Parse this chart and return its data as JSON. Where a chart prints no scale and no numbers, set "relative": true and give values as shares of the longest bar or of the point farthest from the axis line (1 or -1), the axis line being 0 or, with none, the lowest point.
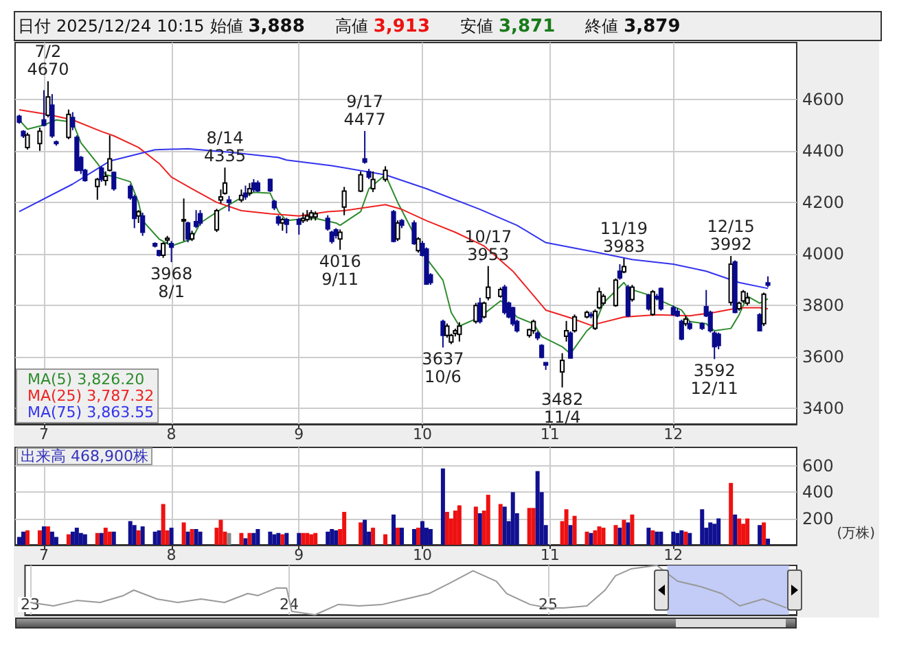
{
  "chart_data": [
    {
      "type": "candlestick",
      "title": "日付 2025/12/24 10:15 始値 3,888 高値 3,913 安値 3,871 終値 3,879",
      "x": [
        "2025-06-25",
        "2025-06-26",
        "2025-06-27",
        "2025-06-30",
        "2025-07-01",
        "2025-07-02",
        "2025-07-03",
        "2025-07-04",
        "2025-07-07",
        "2025-07-08",
        "2025-07-09",
        "2025-07-10",
        "2025-07-11",
        "2025-07-14",
        "2025-07-15",
        "2025-07-16",
        "2025-07-17",
        "2025-07-18",
        "2025-07-22",
        "2025-07-23",
        "2025-07-24",
        "2025-07-25",
        "2025-07-28",
        "2025-07-29",
        "2025-07-30",
        "2025-07-31",
        "2025-08-01",
        "2025-08-04",
        "2025-08-05",
        "2025-08-06",
        "2025-08-07",
        "2025-08-08",
        "2025-08-12",
        "2025-08-13",
        "2025-08-14",
        "2025-08-15",
        "2025-08-18",
        "2025-08-19",
        "2025-08-20",
        "2025-08-21",
        "2025-08-22",
        "2025-08-25",
        "2025-08-26",
        "2025-08-27",
        "2025-08-28",
        "2025-08-29",
        "2025-09-01",
        "2025-09-02",
        "2025-09-03",
        "2025-09-04",
        "2025-09-05",
        "2025-09-08",
        "2025-09-09",
        "2025-09-10",
        "2025-09-11",
        "2025-09-12",
        "2025-09-16",
        "2025-09-17",
        "2025-09-18",
        "2025-09-19",
        "2025-09-22",
        "2025-09-24",
        "2025-09-25",
        "2025-09-26",
        "2025-09-29",
        "2025-09-30",
        "2025-10-01",
        "2025-10-02",
        "2025-10-03",
        "2025-10-06",
        "2025-10-07",
        "2025-10-08",
        "2025-10-09",
        "2025-10-10",
        "2025-10-14",
        "2025-10-15",
        "2025-10-16",
        "2025-10-17",
        "2025-10-20",
        "2025-10-21",
        "2025-10-22",
        "2025-10-23",
        "2025-10-24",
        "2025-10-27",
        "2025-10-28",
        "2025-10-29",
        "2025-10-30",
        "2025-10-31",
        "2025-11-04",
        "2025-11-05",
        "2025-11-06",
        "2025-11-07",
        "2025-11-10",
        "2025-11-11",
        "2025-11-12",
        "2025-11-13",
        "2025-11-14",
        "2025-11-17",
        "2025-11-18",
        "2025-11-19",
        "2025-11-20",
        "2025-11-21",
        "2025-11-25",
        "2025-11-26",
        "2025-11-27",
        "2025-11-28",
        "2025-12-01",
        "2025-12-02",
        "2025-12-03",
        "2025-12-04",
        "2025-12-05",
        "2025-12-08",
        "2025-12-09",
        "2025-12-10",
        "2025-12-11",
        "2025-12-12",
        "2025-12-15",
        "2025-12-16",
        "2025-12-17",
        "2025-12-18",
        "2025-12-19",
        "2025-12-22",
        "2025-12-23",
        "2025-12-24"
      ],
      "ohlc": [
        [
          4534,
          4540,
          4505,
          4511
        ],
        [
          4475,
          4480,
          4450,
          4458
        ],
        [
          4413,
          4470,
          4405,
          4461
        ],
        [
          4428,
          4490,
          4400,
          4476
        ],
        [
          4520,
          4635,
          4495,
          4499
        ],
        [
          4538,
          4670,
          4530,
          4609
        ],
        [
          4577,
          4620,
          4450,
          4458
        ],
        [
          4435,
          4440,
          4420,
          4428
        ],
        [
          4452,
          4560,
          4445,
          4541
        ],
        [
          4529,
          4550,
          4480,
          4493
        ],
        [
          4452,
          4460,
          4320,
          4324
        ],
        [
          4374,
          4380,
          4310,
          4324
        ],
        [
          4324,
          4330,
          4280,
          4285
        ],
        [
          4262,
          4295,
          4210,
          4289
        ],
        [
          4333,
          4340,
          4280,
          4289
        ],
        [
          4285,
          4320,
          4265,
          4301
        ],
        [
          4324,
          4460,
          4320,
          4369
        ],
        [
          4316,
          4320,
          4245,
          4253
        ],
        [
          4262,
          4270,
          4210,
          4218
        ],
        [
          4221,
          4230,
          4100,
          4138
        ],
        [
          4147,
          4170,
          4120,
          4164
        ],
        [
          4147,
          4160,
          4070,
          4084
        ],
        [
          4040,
          4045,
          4025,
          4031
        ],
        [
          4013,
          4015,
          3990,
          3995
        ],
        [
          3995,
          4045,
          3985,
          4040
        ],
        [
          4054,
          4070,
          4040,
          4061
        ],
        [
          4040,
          4050,
          3968,
          4026
        ],
        [
          4130,
          4215,
          4050,
          4133
        ],
        [
          4120,
          4125,
          4045,
          4058
        ],
        [
          4058,
          4090,
          4050,
          4079
        ],
        [
          4125,
          4170,
          4100,
          4107
        ],
        [
          4156,
          4170,
          4110,
          4120
        ],
        [
          4093,
          4175,
          4085,
          4168
        ],
        [
          4209,
          4250,
          4195,
          4221
        ],
        [
          4235,
          4335,
          4230,
          4275
        ],
        [
          4209,
          4225,
          4165,
          4200
        ],
        [
          4209,
          4250,
          4200,
          4227
        ],
        [
          4236,
          4265,
          4210,
          4222
        ],
        [
          4236,
          4275,
          4225,
          4253
        ],
        [
          4275,
          4290,
          4240,
          4250
        ],
        [
          4275,
          4285,
          4240,
          4245
        ],
        [
          4289,
          4292,
          4240,
          4245
        ],
        [
          4204,
          4210,
          4170,
          4179
        ],
        [
          4143,
          4150,
          4110,
          4120
        ],
        [
          4120,
          4140,
          4090,
          4133
        ],
        [
          4133,
          4140,
          4080,
          4115
        ],
        [
          4133,
          4140,
          4075,
          4115
        ],
        [
          4129,
          4160,
          4120,
          4138
        ],
        [
          4133,
          4170,
          4125,
          4147
        ],
        [
          4143,
          4170,
          4130,
          4159
        ],
        [
          4143,
          4165,
          4130,
          4156
        ],
        [
          4138,
          4150,
          4090,
          4097
        ],
        [
          4084,
          4090,
          4040,
          4049
        ],
        [
          4093,
          4100,
          4060,
          4072
        ],
        [
          4058,
          4095,
          4016,
          4084
        ],
        [
          4182,
          4260,
          4150,
          4244
        ],
        [
          4244,
          4320,
          4240,
          4307
        ],
        [
          4369,
          4477,
          4350,
          4356
        ],
        [
          4319,
          4330,
          4290,
          4298
        ],
        [
          4253,
          4320,
          4240,
          4289
        ],
        [
          4289,
          4340,
          4280,
          4324
        ],
        [
          4164,
          4170,
          4045,
          4049
        ],
        [
          4058,
          4130,
          4050,
          4120
        ],
        [
          4129,
          4135,
          4100,
          4111
        ],
        [
          4120,
          4130,
          4035,
          4040
        ],
        [
          4013,
          4065,
          4005,
          4058
        ],
        [
          4040,
          4050,
          3990,
          3995
        ],
        [
          4019,
          4025,
          3880,
          3883
        ],
        [
          3919,
          3925,
          3880,
          3889
        ],
        [
          3738,
          3745,
          3637,
          3684
        ],
        [
          3684,
          3730,
          3675,
          3720
        ],
        [
          3658,
          3690,
          3650,
          3684
        ],
        [
          3692,
          3710,
          3680,
          3702
        ],
        [
          3688,
          3735,
          3660,
          3720
        ],
        [
          3738,
          3810,
          3730,
          3800
        ],
        [
          3809,
          3830,
          3730,
          3738
        ],
        [
          3756,
          3815,
          3750,
          3809
        ],
        [
          3830,
          3953,
          3820,
          3871
        ],
        [
          3836,
          3870,
          3830,
          3862
        ],
        [
          3871,
          3880,
          3765,
          3773
        ],
        [
          3809,
          3815,
          3750,
          3756
        ],
        [
          3791,
          3795,
          3720,
          3729
        ],
        [
          3738,
          3745,
          3695,
          3702
        ],
        [
          3684,
          3710,
          3675,
          3706
        ],
        [
          3702,
          3745,
          3690,
          3738
        ],
        [
          3693,
          3700,
          3665,
          3675
        ],
        [
          3645,
          3650,
          3595,
          3599
        ],
        [
          3578,
          3580,
          3550,
          3569
        ],
        [
          3542,
          3615,
          3482,
          3587
        ],
        [
          3681,
          3740,
          3660,
          3702
        ],
        [
          3693,
          3700,
          3595,
          3596
        ],
        [
          3702,
          3765,
          3695,
          3756
        ],
        [
          3756,
          3780,
          3750,
          3773
        ],
        [
          3765,
          3775,
          3750,
          3760
        ],
        [
          3711,
          3785,
          3705,
          3777
        ],
        [
          3791,
          3870,
          3785,
          3853
        ],
        [
          3809,
          3845,
          3800,
          3836
        ],
        [
          3800,
          3905,
          3795,
          3898
        ],
        [
          3933,
          3960,
          3900,
          3907
        ],
        [
          3930,
          3983,
          3925,
          3951
        ],
        [
          3871,
          3880,
          3755,
          3760
        ],
        [
          3823,
          3880,
          3815,
          3871
        ],
        [
          3840,
          3845,
          3780,
          3787
        ],
        [
          3765,
          3860,
          3760,
          3853
        ],
        [
          3835,
          3845,
          3820,
          3827
        ],
        [
          3866,
          3870,
          3780,
          3787
        ],
        [
          3791,
          3800,
          3760,
          3765
        ],
        [
          3777,
          3790,
          3755,
          3760
        ],
        [
          3738,
          3745,
          3665,
          3670
        ],
        [
          3729,
          3760,
          3720,
          3747
        ],
        [
          3729,
          3740,
          3705,
          3711
        ],
        [
          3729,
          3735,
          3705,
          3711
        ],
        [
          3795,
          3860,
          3755,
          3760
        ],
        [
          3773,
          3780,
          3695,
          3702
        ],
        [
          3693,
          3700,
          3592,
          3640
        ],
        [
          3688,
          3695,
          3630,
          3645
        ],
        [
          3812,
          3992,
          3800,
          3960
        ],
        [
          3969,
          3975,
          3770,
          3773
        ],
        [
          3787,
          3815,
          3780,
          3809
        ],
        [
          3818,
          3860,
          3810,
          3853
        ],
        [
          3809,
          3850,
          3800,
          3830
        ],
        [
          3764,
          3770,
          3700,
          3702
        ],
        [
          3729,
          3850,
          3720,
          3844
        ],
        [
          3888,
          3913,
          3871,
          3879
        ]
      ],
      "series": [
        {
          "type": "line",
          "name": "MA(5) 3,826.20",
          "color": "#2e8b2e",
          "x": [
            "2025-06-25",
            "2025-06-27",
            "2025-07-01",
            "2025-07-04",
            "2025-07-08",
            "2025-07-10",
            "2025-07-14",
            "2025-07-16",
            "2025-07-18",
            "2025-07-22",
            "2025-07-24",
            "2025-07-25",
            "2025-07-29",
            "2025-08-01",
            "2025-08-06",
            "2025-08-08",
            "2025-08-13",
            "2025-08-18",
            "2025-08-21",
            "2025-08-25",
            "2025-08-27",
            "2025-08-29",
            "2025-09-03",
            "2025-09-05",
            "2025-09-10",
            "2025-09-11",
            "2025-09-16",
            "2025-09-18",
            "2025-09-22",
            "2025-09-25",
            "2025-09-29",
            "2025-10-01",
            "2025-10-06",
            "2025-10-08",
            "2025-10-10",
            "2025-10-15",
            "2025-10-20",
            "2025-10-21",
            "2025-10-24",
            "2025-10-28",
            "2025-10-30",
            "2025-11-04",
            "2025-11-06",
            "2025-11-10",
            "2025-11-12",
            "2025-11-14",
            "2025-11-19",
            "2025-11-20",
            "2025-11-26",
            "2025-11-28",
            "2025-12-03",
            "2025-12-05",
            "2025-12-09",
            "2025-12-11",
            "2025-12-15",
            "2025-12-17",
            "2025-12-18",
            "2025-12-19",
            "2025-12-22",
            "2025-12-24"
          ],
          "values": [
            4520,
            4484,
            4500,
            4520,
            4511,
            4431,
            4351,
            4307,
            4300,
            4280,
            4200,
            4129,
            4058,
            4031,
            4058,
            4120,
            4173,
            4218,
            4239,
            4236,
            4164,
            4129,
            4138,
            4138,
            4120,
            4111,
            4164,
            4253,
            4307,
            4200,
            4076,
            4004,
            3898,
            3773,
            3720,
            3755,
            3818,
            3809,
            3755,
            3729,
            3680,
            3640,
            3613,
            3702,
            3729,
            3809,
            3889,
            3866,
            3836,
            3818,
            3782,
            3738,
            3729,
            3702,
            3711,
            3764,
            3800,
            3836,
            3809,
            3826
          ]
        },
        {
          "type": "line",
          "name": "MA(25) 3,787.32",
          "color": "#ee2222",
          "x": [
            "2025-06-25",
            "2025-07-02",
            "2025-07-08",
            "2025-07-15",
            "2025-07-18",
            "2025-07-24",
            "2025-07-29",
            "2025-08-01",
            "2025-08-06",
            "2025-08-12",
            "2025-08-18",
            "2025-08-25",
            "2025-09-01",
            "2025-09-08",
            "2025-09-12",
            "2025-09-22",
            "2025-09-26",
            "2025-10-02",
            "2025-10-09",
            "2025-10-16",
            "2025-10-23",
            "2025-10-29",
            "2025-10-31",
            "2025-11-06",
            "2025-11-11",
            "2025-11-19",
            "2025-11-27",
            "2025-12-05",
            "2025-12-11",
            "2025-12-17",
            "2025-12-22",
            "2025-12-24"
          ],
          "values": [
            4559,
            4541,
            4520,
            4475,
            4458,
            4413,
            4351,
            4298,
            4253,
            4200,
            4168,
            4156,
            4147,
            4164,
            4168,
            4191,
            4173,
            4129,
            4084,
            4031,
            3933,
            3820,
            3782,
            3752,
            3723,
            3755,
            3764,
            3760,
            3773,
            3791,
            3791,
            3787
          ]
        },
        {
          "type": "line",
          "name": "MA(75) 3,863.55",
          "color": "#3333ee",
          "x": [
            "2025-06-25",
            "2025-07-08",
            "2025-07-17",
            "2025-07-28",
            "2025-08-05",
            "2025-08-15",
            "2025-08-27",
            "2025-08-29",
            "2025-09-09",
            "2025-09-22",
            "2025-10-02",
            "2025-10-15",
            "2025-10-24",
            "2025-10-31",
            "2025-11-13",
            "2025-11-21",
            "2025-12-01",
            "2025-12-09",
            "2025-12-17",
            "2025-12-24"
          ],
          "values": [
            4164,
            4271,
            4360,
            4404,
            4408,
            4395,
            4374,
            4364,
            4342,
            4307,
            4253,
            4173,
            4111,
            4044,
            4004,
            3978,
            3960,
            3933,
            3889,
            3866
          ]
        }
      ],
      "annotations": [
        {
          "text": "7/2\n4670",
          "x": "2025-07-02",
          "y": 4670
        },
        {
          "text": "3968\n8/1",
          "x": "2025-08-01",
          "y": 3968
        },
        {
          "text": "8/14\n4335",
          "x": "2025-08-14",
          "y": 4335
        },
        {
          "text": "4016\n9/11",
          "x": "2025-09-11",
          "y": 4016
        },
        {
          "text": "9/17\n4477",
          "x": "2025-09-17",
          "y": 4477
        },
        {
          "text": "3637\n10/6",
          "x": "2025-10-06",
          "y": 3637
        },
        {
          "text": "10/17\n3953",
          "x": "2025-10-17",
          "y": 3953
        },
        {
          "text": "3482\n11/4",
          "x": "2025-11-04",
          "y": 3482
        },
        {
          "text": "11/19\n3983",
          "x": "2025-11-19",
          "y": 3983
        },
        {
          "text": "3592\n12/11",
          "x": "2025-12-11",
          "y": 3592
        },
        {
          "text": "12/15\n3992",
          "x": "2025-12-15",
          "y": 3992
        }
      ],
      "xlim": [
        "2025-06-24",
        "2025-12-31"
      ],
      "xticks": [
        {
          "value": "2025-07-01",
          "label": "7"
        },
        {
          "value": "2025-08-01",
          "label": "8"
        },
        {
          "value": "2025-09-01",
          "label": "9"
        },
        {
          "value": "2025-10-01",
          "label": "10"
        },
        {
          "value": "2025-11-01",
          "label": "11"
        },
        {
          "value": "2025-12-01",
          "label": "12"
        }
      ],
      "ylim": [
        3340,
        4820
      ],
      "yticks": [
        3400,
        3600,
        3800,
        4000,
        4200,
        4400,
        4600
      ],
      "grid": true,
      "legend": "bottom left"
    },
    {
      "type": "bar",
      "title": "出来高 468,900株",
      "ylabel": "(万株)",
      "x": [
        "2025-06-25",
        "2025-06-26",
        "2025-06-27",
        "2025-06-30",
        "2025-07-01",
        "2025-07-02",
        "2025-07-03",
        "2025-07-04",
        "2025-07-07",
        "2025-07-08",
        "2025-07-09",
        "2025-07-10",
        "2025-07-11",
        "2025-07-14",
        "2025-07-15",
        "2025-07-16",
        "2025-07-17",
        "2025-07-18",
        "2025-07-22",
        "2025-07-23",
        "2025-07-24",
        "2025-07-25",
        "2025-07-28",
        "2025-07-29",
        "2025-07-30",
        "2025-07-31",
        "2025-08-01",
        "2025-08-04",
        "2025-08-05",
        "2025-08-06",
        "2025-08-07",
        "2025-08-08",
        "2025-08-12",
        "2025-08-13",
        "2025-08-14",
        "2025-08-15",
        "2025-08-18",
        "2025-08-19",
        "2025-08-20",
        "2025-08-21",
        "2025-08-22",
        "2025-08-25",
        "2025-08-26",
        "2025-08-27",
        "2025-08-28",
        "2025-08-29",
        "2025-09-01",
        "2025-09-02",
        "2025-09-03",
        "2025-09-04",
        "2025-09-05",
        "2025-09-08",
        "2025-09-09",
        "2025-09-10",
        "2025-09-11",
        "2025-09-12",
        "2025-09-16",
        "2025-09-17",
        "2025-09-18",
        "2025-09-19",
        "2025-09-22",
        "2025-09-24",
        "2025-09-25",
        "2025-09-26",
        "2025-09-29",
        "2025-09-30",
        "2025-10-01",
        "2025-10-02",
        "2025-10-03",
        "2025-10-06",
        "2025-10-07",
        "2025-10-08",
        "2025-10-09",
        "2025-10-10",
        "2025-10-14",
        "2025-10-15",
        "2025-10-16",
        "2025-10-17",
        "2025-10-20",
        "2025-10-21",
        "2025-10-22",
        "2025-10-23",
        "2025-10-24",
        "2025-10-27",
        "2025-10-28",
        "2025-10-29",
        "2025-10-30",
        "2025-10-31",
        "2025-11-04",
        "2025-11-05",
        "2025-11-06",
        "2025-11-07",
        "2025-11-10",
        "2025-11-11",
        "2025-11-12",
        "2025-11-13",
        "2025-11-14",
        "2025-11-17",
        "2025-11-18",
        "2025-11-19",
        "2025-11-20",
        "2025-11-21",
        "2025-11-25",
        "2025-11-26",
        "2025-11-27",
        "2025-11-28",
        "2025-12-01",
        "2025-12-02",
        "2025-12-03",
        "2025-12-04",
        "2025-12-05",
        "2025-12-08",
        "2025-12-09",
        "2025-12-10",
        "2025-12-11",
        "2025-12-12",
        "2025-12-15",
        "2025-12-16",
        "2025-12-17",
        "2025-12-18",
        "2025-12-19",
        "2025-12-22",
        "2025-12-23",
        "2025-12-24"
      ],
      "values": [
        60,
        100,
        110,
        110,
        140,
        140,
        100,
        60,
        80,
        100,
        130,
        90,
        80,
        90,
        90,
        130,
        100,
        100,
        180,
        150,
        110,
        140,
        100,
        110,
        310,
        110,
        130,
        170,
        100,
        120,
        120,
        100,
        130,
        190,
        100,
        90,
        90,
        50,
        90,
        90,
        120,
        100,
        80,
        90,
        80,
        90,
        90,
        90,
        90,
        80,
        90,
        100,
        120,
        110,
        120,
        250,
        170,
        190,
        100,
        130,
        80,
        230,
        130,
        130,
        120,
        130,
        180,
        130,
        120,
        580,
        250,
        200,
        260,
        300,
        290,
        240,
        260,
        380,
        310,
        290,
        180,
        400,
        240,
        280,
        280,
        560,
        400,
        150,
        180,
        270,
        150,
        220,
        100,
        90,
        110,
        140,
        130,
        150,
        130,
        190,
        170,
        230,
        130,
        110,
        100,
        100,
        100,
        90,
        110,
        100,
        90,
        270,
        130,
        170,
        160,
        200,
        470,
        230,
        200,
        160,
        200,
        150,
        170,
        46.89
      ],
      "colors": [
        "#101090",
        "#101090",
        "#ee1111",
        "#ee1111",
        "#101090",
        "#ee1111",
        "#101090",
        "#101090",
        "#ee1111",
        "#101090",
        "#101090",
        "#101090",
        "#101090",
        "#ee1111",
        "#101090",
        "#ee1111",
        "#ee1111",
        "#101090",
        "#101090",
        "#101090",
        "#ee1111",
        "#101090",
        "#101090",
        "#101090",
        "#ee1111",
        "#ee1111",
        "#101090",
        "#ee1111",
        "#101090",
        "#ee1111",
        "#101090",
        "#101090",
        "#ee1111",
        "#ee1111",
        "#ee1111",
        "#888888",
        "#ee1111",
        "#101090",
        "#ee1111",
        "#101090",
        "#101090",
        "#101090",
        "#101090",
        "#101090",
        "#ee1111",
        "#101090",
        "#101090",
        "#ee1111",
        "#ee1111",
        "#ee1111",
        "#ee1111",
        "#101090",
        "#101090",
        "#101090",
        "#ee1111",
        "#ee1111",
        "#ee1111",
        "#101090",
        "#101090",
        "#ee1111",
        "#ee1111",
        "#101090",
        "#ee1111",
        "#101090",
        "#101090",
        "#ee1111",
        "#101090",
        "#101090",
        "#101090",
        "#101090",
        "#ee1111",
        "#ee1111",
        "#ee1111",
        "#ee1111",
        "#ee1111",
        "#101090",
        "#ee1111",
        "#ee1111",
        "#ee1111",
        "#101090",
        "#101090",
        "#101090",
        "#101090",
        "#ee1111",
        "#ee1111",
        "#101090",
        "#101090",
        "#101090",
        "#ee1111",
        "#ee1111",
        "#101090",
        "#ee1111",
        "#ee1111",
        "#101090",
        "#ee1111",
        "#ee1111",
        "#ee1111",
        "#ee1111",
        "#101090",
        "#ee1111",
        "#101090",
        "#ee1111",
        "#101090",
        "#ee1111",
        "#101090",
        "#101090",
        "#101090",
        "#101090",
        "#101090",
        "#ee1111",
        "#101090",
        "#101090",
        "#101090",
        "#101090",
        "#101090",
        "#101090",
        "#ee1111",
        "#101090",
        "#ee1111",
        "#ee1111",
        "#ee1111",
        "#101090",
        "#ee1111",
        "#101090"
      ],
      "xlim": [
        "2025-06-24",
        "2025-12-31"
      ],
      "xticks": [
        {
          "value": "2025-07-01",
          "label": "7"
        },
        {
          "value": "2025-08-01",
          "label": "8"
        },
        {
          "value": "2025-09-01",
          "label": "9"
        },
        {
          "value": "2025-10-01",
          "label": "10"
        },
        {
          "value": "2025-11-01",
          "label": "11"
        },
        {
          "value": "2025-12-01",
          "label": "12"
        }
      ],
      "ylim": [
        0,
        740
      ],
      "yticks": [
        200,
        400,
        600
      ],
      "grid": true
    },
    {
      "type": "line",
      "relative": true,
      "color": "#999999",
      "x": [
        2023.0,
        2023.09,
        2023.18,
        2023.27,
        2023.36,
        2023.4,
        2023.49,
        2023.57,
        2023.66,
        2023.75,
        2023.84,
        2023.88,
        2023.95,
        2023.99,
        2024.01,
        2024.1,
        2024.19,
        2024.27,
        2024.36,
        2024.45,
        2024.54,
        2024.62,
        2024.71,
        2024.8,
        2024.84,
        2024.93,
        2025.0,
        2025.06,
        2025.15,
        2025.22,
        2025.26,
        2025.32,
        2025.42,
        2025.5,
        2025.59,
        2025.67,
        2025.74,
        2025.83,
        2025.92
      ],
      "values": [
        0.25,
        0.18,
        0.29,
        0.25,
        0.39,
        0.5,
        0.32,
        0.25,
        0.32,
        0.25,
        0.43,
        0.39,
        0.54,
        0.54,
        0.07,
        0,
        0.21,
        0.18,
        0.21,
        0.32,
        0.43,
        0.64,
        0.89,
        0.68,
        0.43,
        0.21,
        0.14,
        0.14,
        0.18,
        0.5,
        0.79,
        0.93,
        1,
        0.68,
        0.57,
        0.43,
        0.18,
        0.32,
        0.14
      ],
      "xlim": [
        2022.98,
        2025.96
      ],
      "xticks": [
        {
          "value": 2023,
          "label": "23"
        },
        {
          "value": 2024,
          "label": "24"
        },
        {
          "value": 2025,
          "label": "25"
        }
      ],
      "grid": "x",
      "bands": [
        {
          "axis": "x",
          "from": 2025.46,
          "to": 2025.93,
          "color": "#b7c3f5"
        }
      ]
    }
  ]
}
